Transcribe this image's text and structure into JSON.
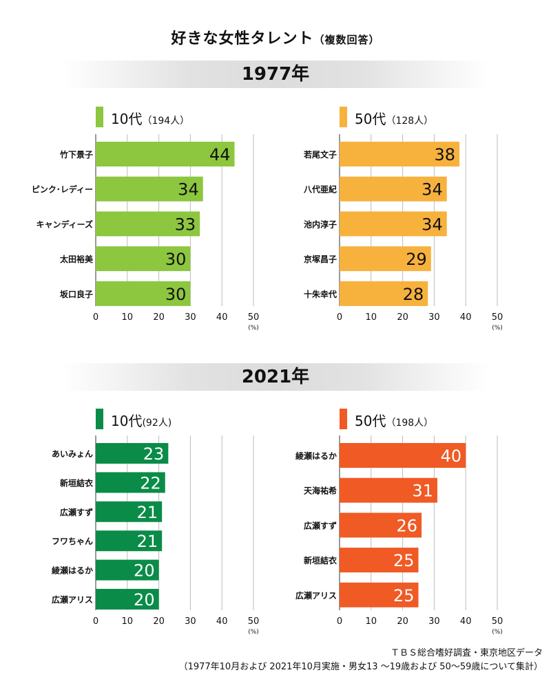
{
  "title": {
    "main": "好きな女性タレント",
    "sub": "（複数回答）"
  },
  "colors": {
    "green_light": "#8dc63f",
    "orange_light": "#f7b13d",
    "green_dark": "#0a8c48",
    "orange_dark": "#f05a24",
    "band": "#dcdcdc",
    "grid": "#bbbbbb"
  },
  "sections": [
    {
      "year": "1977年",
      "panels": [
        {
          "label": "10代",
          "count": "（194人）",
          "color": "#8dc63f",
          "value_color": "#111111"
        },
        {
          "label": "50代",
          "count": "（128人）",
          "color": "#f7b13d",
          "value_color": "#111111"
        }
      ]
    },
    {
      "year": "2021年",
      "panels": [
        {
          "label": "10代",
          "count": "(92人)",
          "color": "#0a8c48",
          "value_color": "#ffffff"
        },
        {
          "label": "50代",
          "count": "（198人）",
          "color": "#f05a24",
          "value_color": "#ffffff"
        }
      ]
    }
  ],
  "chart_data": [
    {
      "type": "bar",
      "orientation": "horizontal",
      "categories": [
        "竹下景子",
        "ピンク･レディー",
        "キャンディーズ",
        "太田裕美",
        "坂口良子"
      ],
      "values": [
        44,
        34,
        33,
        30,
        30
      ],
      "xlim": [
        0,
        50
      ],
      "xticks": [
        "0",
        "10",
        "20",
        "30",
        "40",
        "50"
      ],
      "unit": "(%)",
      "grid": true
    },
    {
      "type": "bar",
      "orientation": "horizontal",
      "categories": [
        "若尾文子",
        "八代亜紀",
        "池内淳子",
        "京塚昌子",
        "十朱幸代"
      ],
      "values": [
        38,
        34,
        34,
        29,
        28
      ],
      "xlim": [
        0,
        50
      ],
      "xticks": [
        "0",
        "10",
        "20",
        "30",
        "40",
        "50"
      ],
      "unit": "(%)",
      "grid": true
    },
    {
      "type": "bar",
      "orientation": "horizontal",
      "categories": [
        "あいみょん",
        "新垣結衣",
        "広瀬すず",
        "フワちゃん",
        "綾瀬はるか",
        "広瀬アリス"
      ],
      "values": [
        23,
        22,
        21,
        21,
        20,
        20
      ],
      "xlim": [
        0,
        50
      ],
      "xticks": [
        "0",
        "10",
        "20",
        "30",
        "40",
        "50"
      ],
      "unit": "(%)",
      "grid": true
    },
    {
      "type": "bar",
      "orientation": "horizontal",
      "categories": [
        "綾瀬はるか",
        "天海祐希",
        "広瀬すず",
        "新垣結衣",
        "広瀬アリス"
      ],
      "values": [
        40,
        31,
        26,
        25,
        25
      ],
      "xlim": [
        0,
        50
      ],
      "xticks": [
        "0",
        "10",
        "20",
        "30",
        "40",
        "50"
      ],
      "unit": "(%)",
      "grid": true
    }
  ],
  "footer": {
    "line1": "ＴＢＳ総合嗜好調査・東京地区データ",
    "line2": "（1977年10月および 2021年10月実施・男女13 ～19歳および 50～59歳について集計）"
  }
}
